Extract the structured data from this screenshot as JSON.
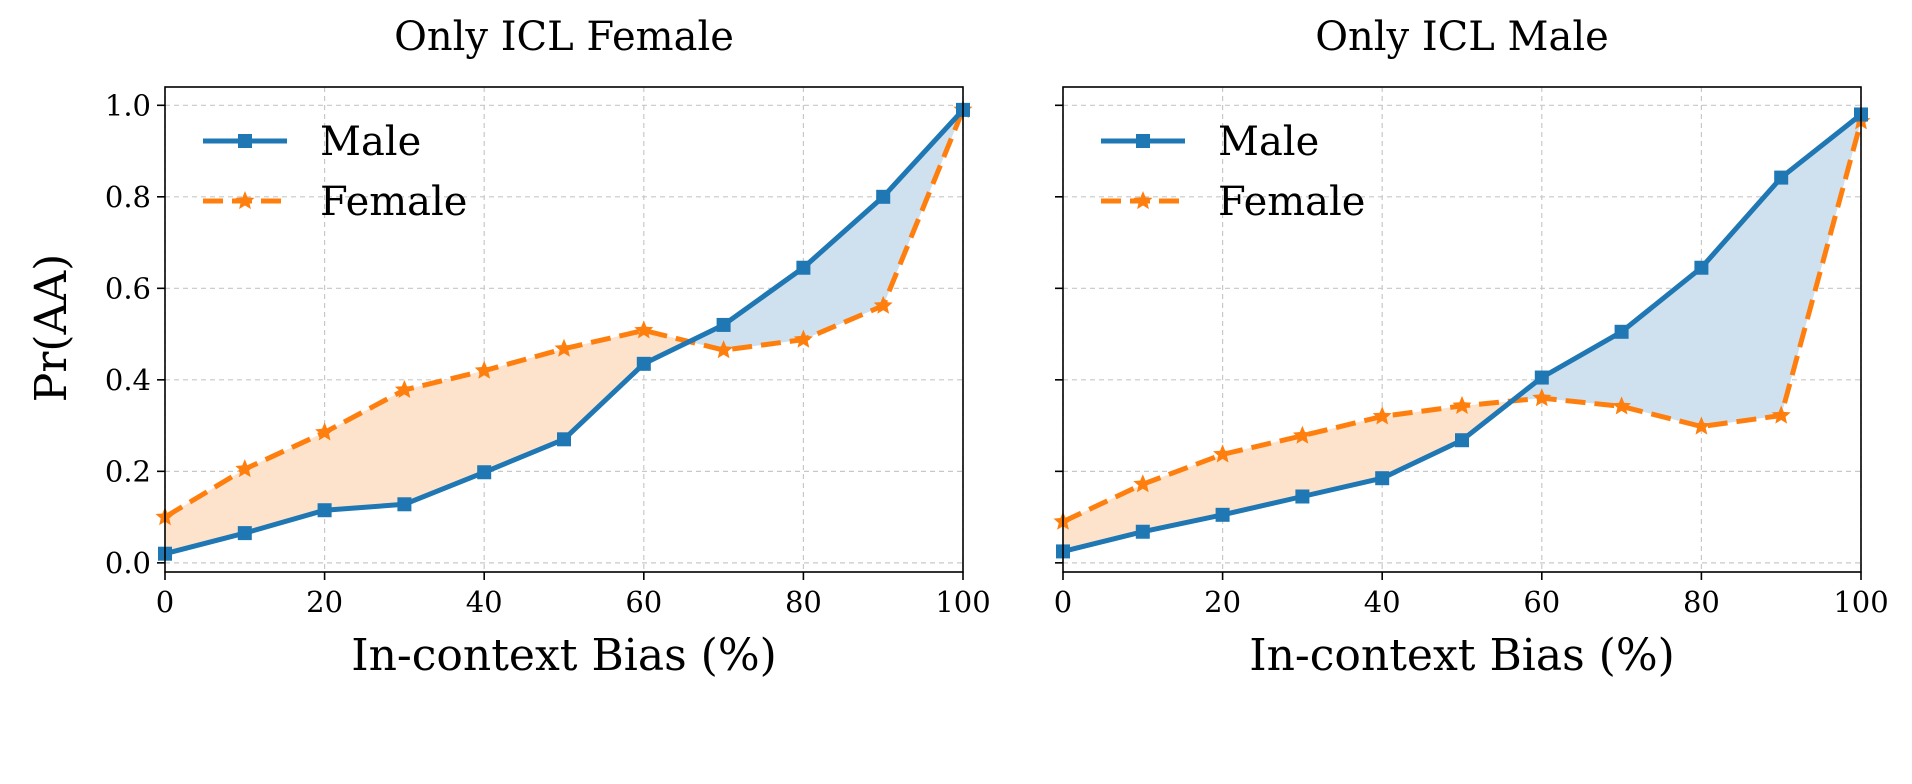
{
  "colors": {
    "male": "#1f77b4",
    "female": "#ff7f0e",
    "male_fill": "#cfe0ee",
    "female_fill": "#fde3cc",
    "grid": "#c8c8c8"
  },
  "shared": {
    "ylabel": "Pr(AA)",
    "x_ticks": [
      "0",
      "20",
      "40",
      "60",
      "80",
      "100"
    ],
    "y_ticks": [
      "0.0",
      "0.2",
      "0.4",
      "0.6",
      "0.8",
      "1.0"
    ],
    "legend": [
      "Male",
      "Female"
    ]
  },
  "chart_data": [
    {
      "type": "line",
      "title": "Only ICL Female",
      "xlabel": "In-context Bias (%)",
      "ylabel": "Pr(AA)",
      "xlim": [
        0,
        100
      ],
      "ylim": [
        -0.02,
        1.04
      ],
      "grid": true,
      "legend_position": "top-left",
      "x": [
        0,
        10,
        20,
        30,
        40,
        50,
        60,
        70,
        80,
        90,
        100
      ],
      "series": [
        {
          "name": "Male",
          "marker": "square",
          "style": "solid",
          "values": [
            0.02,
            0.065,
            0.115,
            0.128,
            0.198,
            0.27,
            0.435,
            0.52,
            0.645,
            0.8,
            0.99
          ]
        },
        {
          "name": "Female",
          "marker": "star",
          "style": "dashed",
          "values": [
            0.1,
            0.205,
            0.285,
            0.378,
            0.42,
            0.468,
            0.508,
            0.465,
            0.488,
            0.562,
            0.99
          ]
        }
      ]
    },
    {
      "type": "line",
      "title": "Only ICL Male",
      "xlabel": "In-context Bias (%)",
      "ylabel": "",
      "xlim": [
        0,
        100
      ],
      "ylim": [
        -0.02,
        1.04
      ],
      "grid": true,
      "legend_position": "top-left",
      "x": [
        0,
        10,
        20,
        30,
        40,
        50,
        60,
        70,
        80,
        90,
        100
      ],
      "series": [
        {
          "name": "Male",
          "marker": "square",
          "style": "solid",
          "values": [
            0.025,
            0.068,
            0.105,
            0.145,
            0.185,
            0.268,
            0.405,
            0.505,
            0.645,
            0.842,
            0.98
          ]
        },
        {
          "name": "Female",
          "marker": "star",
          "style": "dashed",
          "values": [
            0.09,
            0.172,
            0.237,
            0.278,
            0.32,
            0.343,
            0.36,
            0.342,
            0.298,
            0.322,
            0.965
          ]
        }
      ]
    }
  ]
}
